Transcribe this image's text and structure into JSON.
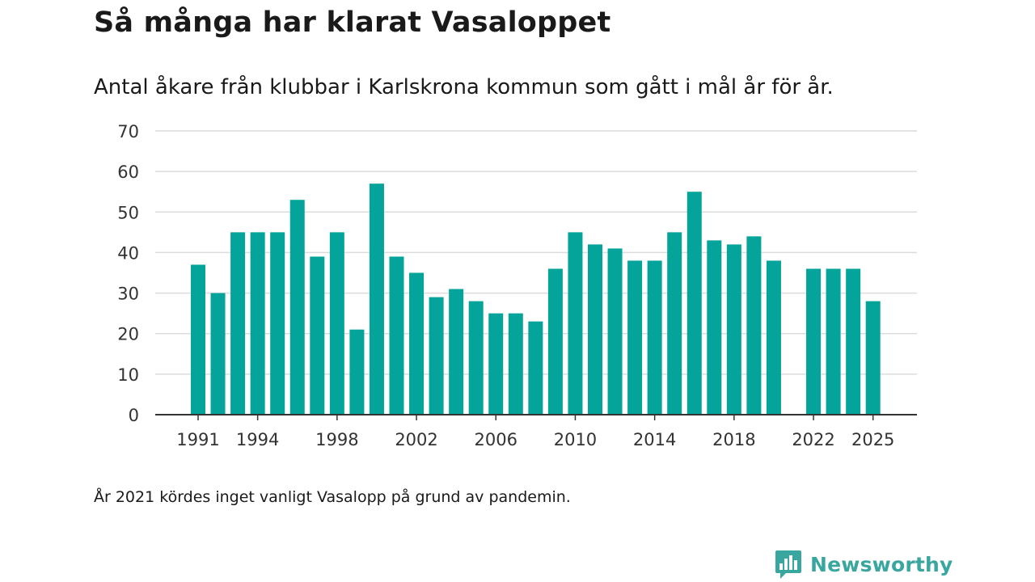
{
  "title": "Så många har klarat Vasaloppet",
  "subtitle": "Antal åkare från klubbar i Karlskrona kommun som gått i mål år för år.",
  "footnote": "År 2021 kördes inget vanligt Vasalopp på grund av pandemin.",
  "brand": {
    "name": "Newsworthy",
    "color": "#3aa6a0",
    "icon": "bar-chart-speech-bubble-icon"
  },
  "chart_data": {
    "type": "bar",
    "title": "Så många har klarat Vasaloppet",
    "xlabel": "",
    "ylabel": "",
    "ylim": [
      0,
      70
    ],
    "yticks": [
      0,
      10,
      20,
      30,
      40,
      50,
      60,
      70
    ],
    "xtick_labels": [
      "1991",
      "1994",
      "1998",
      "2002",
      "2006",
      "2010",
      "2014",
      "2018",
      "2022",
      "2025"
    ],
    "grid": true,
    "bar_color": "#05a49a",
    "categories": [
      1991,
      1992,
      1993,
      1994,
      1995,
      1996,
      1997,
      1998,
      1999,
      2000,
      2001,
      2002,
      2003,
      2004,
      2005,
      2006,
      2007,
      2008,
      2009,
      2010,
      2011,
      2012,
      2013,
      2014,
      2015,
      2016,
      2017,
      2018,
      2019,
      2020,
      2021,
      2022,
      2023,
      2024,
      2025
    ],
    "values": [
      37,
      30,
      45,
      45,
      45,
      53,
      39,
      45,
      21,
      57,
      39,
      35,
      29,
      31,
      28,
      25,
      25,
      23,
      36,
      45,
      42,
      41,
      38,
      38,
      45,
      55,
      43,
      42,
      44,
      38,
      null,
      36,
      36,
      36,
      28
    ]
  }
}
